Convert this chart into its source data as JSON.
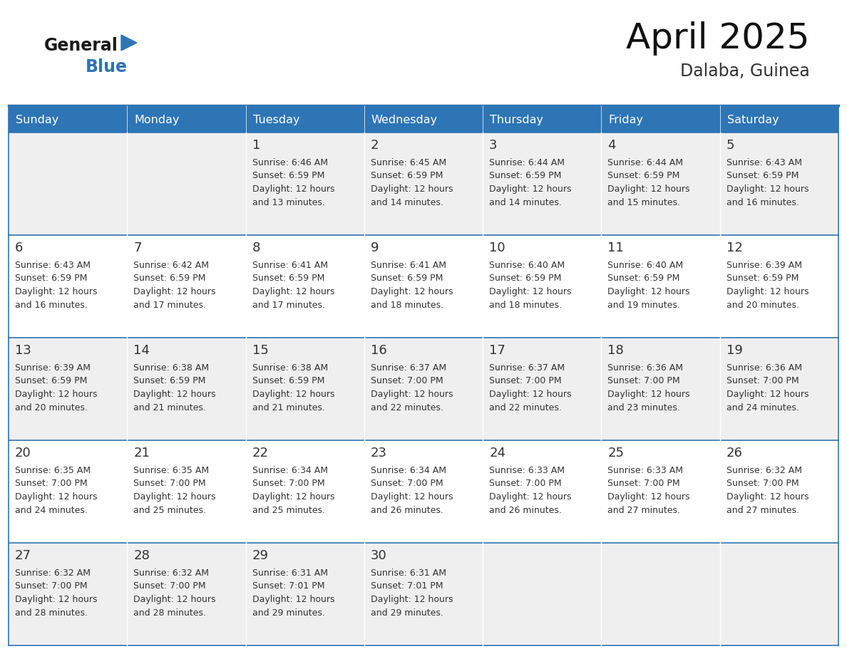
{
  "title": "April 2025",
  "subtitle": "Dalaba, Guinea",
  "header_bg": "#2E75B6",
  "header_text_color": "#FFFFFF",
  "cell_bg_odd": "#EFEFEF",
  "cell_bg_even": "#FFFFFF",
  "text_color": "#333333",
  "border_color": "#2E75B6",
  "days_of_week": [
    "Sunday",
    "Monday",
    "Tuesday",
    "Wednesday",
    "Thursday",
    "Friday",
    "Saturday"
  ],
  "logo_general_color": "#1a1a1a",
  "logo_blue_color": "#2E75B6",
  "logo_triangle_color": "#2E75B6",
  "calendar": [
    [
      {
        "day": "",
        "sunrise": "",
        "sunset": "",
        "daylight1": "",
        "daylight2": ""
      },
      {
        "day": "",
        "sunrise": "",
        "sunset": "",
        "daylight1": "",
        "daylight2": ""
      },
      {
        "day": "1",
        "sunrise": "Sunrise: 6:46 AM",
        "sunset": "Sunset: 6:59 PM",
        "daylight1": "Daylight: 12 hours",
        "daylight2": "and 13 minutes."
      },
      {
        "day": "2",
        "sunrise": "Sunrise: 6:45 AM",
        "sunset": "Sunset: 6:59 PM",
        "daylight1": "Daylight: 12 hours",
        "daylight2": "and 14 minutes."
      },
      {
        "day": "3",
        "sunrise": "Sunrise: 6:44 AM",
        "sunset": "Sunset: 6:59 PM",
        "daylight1": "Daylight: 12 hours",
        "daylight2": "and 14 minutes."
      },
      {
        "day": "4",
        "sunrise": "Sunrise: 6:44 AM",
        "sunset": "Sunset: 6:59 PM",
        "daylight1": "Daylight: 12 hours",
        "daylight2": "and 15 minutes."
      },
      {
        "day": "5",
        "sunrise": "Sunrise: 6:43 AM",
        "sunset": "Sunset: 6:59 PM",
        "daylight1": "Daylight: 12 hours",
        "daylight2": "and 16 minutes."
      }
    ],
    [
      {
        "day": "6",
        "sunrise": "Sunrise: 6:43 AM",
        "sunset": "Sunset: 6:59 PM",
        "daylight1": "Daylight: 12 hours",
        "daylight2": "and 16 minutes."
      },
      {
        "day": "7",
        "sunrise": "Sunrise: 6:42 AM",
        "sunset": "Sunset: 6:59 PM",
        "daylight1": "Daylight: 12 hours",
        "daylight2": "and 17 minutes."
      },
      {
        "day": "8",
        "sunrise": "Sunrise: 6:41 AM",
        "sunset": "Sunset: 6:59 PM",
        "daylight1": "Daylight: 12 hours",
        "daylight2": "and 17 minutes."
      },
      {
        "day": "9",
        "sunrise": "Sunrise: 6:41 AM",
        "sunset": "Sunset: 6:59 PM",
        "daylight1": "Daylight: 12 hours",
        "daylight2": "and 18 minutes."
      },
      {
        "day": "10",
        "sunrise": "Sunrise: 6:40 AM",
        "sunset": "Sunset: 6:59 PM",
        "daylight1": "Daylight: 12 hours",
        "daylight2": "and 18 minutes."
      },
      {
        "day": "11",
        "sunrise": "Sunrise: 6:40 AM",
        "sunset": "Sunset: 6:59 PM",
        "daylight1": "Daylight: 12 hours",
        "daylight2": "and 19 minutes."
      },
      {
        "day": "12",
        "sunrise": "Sunrise: 6:39 AM",
        "sunset": "Sunset: 6:59 PM",
        "daylight1": "Daylight: 12 hours",
        "daylight2": "and 20 minutes."
      }
    ],
    [
      {
        "day": "13",
        "sunrise": "Sunrise: 6:39 AM",
        "sunset": "Sunset: 6:59 PM",
        "daylight1": "Daylight: 12 hours",
        "daylight2": "and 20 minutes."
      },
      {
        "day": "14",
        "sunrise": "Sunrise: 6:38 AM",
        "sunset": "Sunset: 6:59 PM",
        "daylight1": "Daylight: 12 hours",
        "daylight2": "and 21 minutes."
      },
      {
        "day": "15",
        "sunrise": "Sunrise: 6:38 AM",
        "sunset": "Sunset: 6:59 PM",
        "daylight1": "Daylight: 12 hours",
        "daylight2": "and 21 minutes."
      },
      {
        "day": "16",
        "sunrise": "Sunrise: 6:37 AM",
        "sunset": "Sunset: 7:00 PM",
        "daylight1": "Daylight: 12 hours",
        "daylight2": "and 22 minutes."
      },
      {
        "day": "17",
        "sunrise": "Sunrise: 6:37 AM",
        "sunset": "Sunset: 7:00 PM",
        "daylight1": "Daylight: 12 hours",
        "daylight2": "and 22 minutes."
      },
      {
        "day": "18",
        "sunrise": "Sunrise: 6:36 AM",
        "sunset": "Sunset: 7:00 PM",
        "daylight1": "Daylight: 12 hours",
        "daylight2": "and 23 minutes."
      },
      {
        "day": "19",
        "sunrise": "Sunrise: 6:36 AM",
        "sunset": "Sunset: 7:00 PM",
        "daylight1": "Daylight: 12 hours",
        "daylight2": "and 24 minutes."
      }
    ],
    [
      {
        "day": "20",
        "sunrise": "Sunrise: 6:35 AM",
        "sunset": "Sunset: 7:00 PM",
        "daylight1": "Daylight: 12 hours",
        "daylight2": "and 24 minutes."
      },
      {
        "day": "21",
        "sunrise": "Sunrise: 6:35 AM",
        "sunset": "Sunset: 7:00 PM",
        "daylight1": "Daylight: 12 hours",
        "daylight2": "and 25 minutes."
      },
      {
        "day": "22",
        "sunrise": "Sunrise: 6:34 AM",
        "sunset": "Sunset: 7:00 PM",
        "daylight1": "Daylight: 12 hours",
        "daylight2": "and 25 minutes."
      },
      {
        "day": "23",
        "sunrise": "Sunrise: 6:34 AM",
        "sunset": "Sunset: 7:00 PM",
        "daylight1": "Daylight: 12 hours",
        "daylight2": "and 26 minutes."
      },
      {
        "day": "24",
        "sunrise": "Sunrise: 6:33 AM",
        "sunset": "Sunset: 7:00 PM",
        "daylight1": "Daylight: 12 hours",
        "daylight2": "and 26 minutes."
      },
      {
        "day": "25",
        "sunrise": "Sunrise: 6:33 AM",
        "sunset": "Sunset: 7:00 PM",
        "daylight1": "Daylight: 12 hours",
        "daylight2": "and 27 minutes."
      },
      {
        "day": "26",
        "sunrise": "Sunrise: 6:32 AM",
        "sunset": "Sunset: 7:00 PM",
        "daylight1": "Daylight: 12 hours",
        "daylight2": "and 27 minutes."
      }
    ],
    [
      {
        "day": "27",
        "sunrise": "Sunrise: 6:32 AM",
        "sunset": "Sunset: 7:00 PM",
        "daylight1": "Daylight: 12 hours",
        "daylight2": "and 28 minutes."
      },
      {
        "day": "28",
        "sunrise": "Sunrise: 6:32 AM",
        "sunset": "Sunset: 7:00 PM",
        "daylight1": "Daylight: 12 hours",
        "daylight2": "and 28 minutes."
      },
      {
        "day": "29",
        "sunrise": "Sunrise: 6:31 AM",
        "sunset": "Sunset: 7:01 PM",
        "daylight1": "Daylight: 12 hours",
        "daylight2": "and 29 minutes."
      },
      {
        "day": "30",
        "sunrise": "Sunrise: 6:31 AM",
        "sunset": "Sunset: 7:01 PM",
        "daylight1": "Daylight: 12 hours",
        "daylight2": "and 29 minutes."
      },
      {
        "day": "",
        "sunrise": "",
        "sunset": "",
        "daylight1": "",
        "daylight2": ""
      },
      {
        "day": "",
        "sunrise": "",
        "sunset": "",
        "daylight1": "",
        "daylight2": ""
      },
      {
        "day": "",
        "sunrise": "",
        "sunset": "",
        "daylight1": "",
        "daylight2": ""
      }
    ]
  ]
}
